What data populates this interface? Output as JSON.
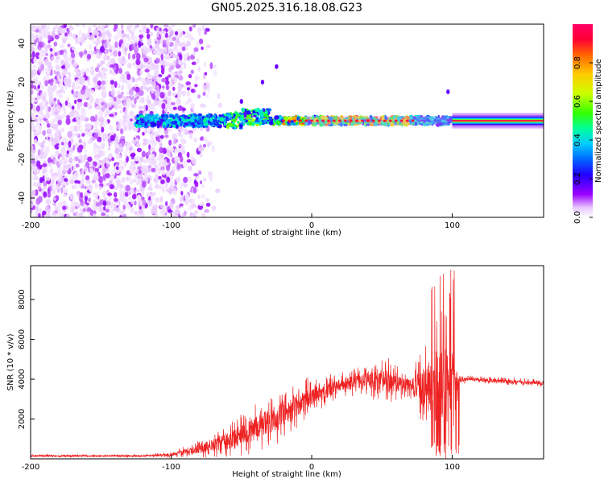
{
  "title": "GN05.2025.316.18.08.G23",
  "chart_data": [
    {
      "type": "heatmap",
      "name": "spectrogram",
      "xlabel": "Height of straight line (km)",
      "ylabel": "Frequency (Hz)",
      "xlim": [
        -200,
        165
      ],
      "ylim": [
        -50,
        50
      ],
      "xticks": [
        -200,
        -100,
        0,
        100
      ],
      "yticks": [
        -40,
        -20,
        0,
        20,
        40
      ],
      "colorbar": {
        "label": "Normalized spectral amplitude",
        "range": [
          0,
          1
        ],
        "ticks": [
          0.0,
          0.2,
          0.4,
          0.6,
          0.8
        ],
        "tick_labels": [
          "0.0",
          "0.2",
          "0.4",
          "0.6",
          "0.8"
        ],
        "colormap": [
          "#ffffff",
          "#e8c8ff",
          "#9900ff",
          "#2200ff",
          "#0066ff",
          "#00ccff",
          "#00ff99",
          "#33ff00",
          "#ccff00",
          "#ffcc00",
          "#ff6600",
          "#ff0033",
          "#ff0066"
        ]
      },
      "features": {
        "noise_region_x": [
          -200,
          -85
        ],
        "signal_line_x": [
          -125,
          165
        ],
        "strong_line_x": [
          100,
          165
        ],
        "branch_points": [
          [
            -50,
            10
          ],
          [
            -35,
            20
          ],
          [
            -25,
            28
          ],
          [
            97,
            15
          ]
        ]
      }
    },
    {
      "type": "line",
      "name": "snr",
      "xlabel": "Height of straight line (km)",
      "ylabel": "SNR (10 * v/v)",
      "xlim": [
        -200,
        165
      ],
      "ylim": [
        0,
        9700
      ],
      "xticks": [
        -200,
        -100,
        0,
        100
      ],
      "yticks": [
        2000,
        4000,
        6000,
        8000
      ],
      "line_color": "#ee2222",
      "envelope": {
        "x": [
          -200,
          -120,
          -100,
          -80,
          -60,
          -40,
          -20,
          0,
          20,
          40,
          50,
          60,
          70,
          80,
          90,
          95,
          100,
          105,
          110,
          140,
          165
        ],
        "mean": [
          150,
          150,
          200,
          500,
          900,
          1500,
          2300,
          3100,
          3700,
          4000,
          3900,
          3800,
          3700,
          3600,
          3500,
          3600,
          3800,
          4000,
          4000,
          3900,
          3800
        ],
        "spread": [
          60,
          60,
          120,
          350,
          700,
          1000,
          1100,
          800,
          500,
          600,
          1200,
          700,
          500,
          1800,
          3000,
          3000,
          2500,
          300,
          150,
          150,
          150
        ]
      }
    }
  ]
}
